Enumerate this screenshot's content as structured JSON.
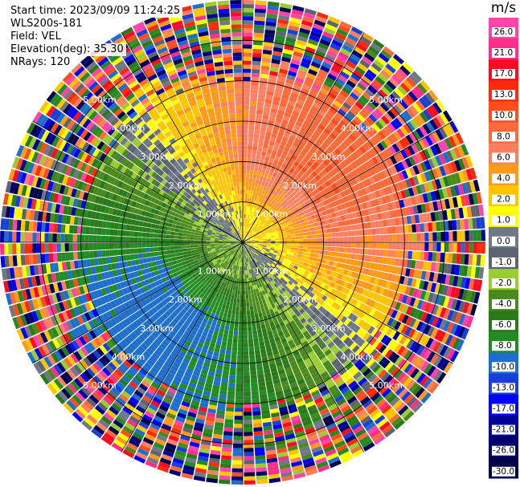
{
  "header": {
    "start_time": "Start time: 2023/09/09 11:24:25",
    "site": "WLS200s-181",
    "field": "Field: VEL",
    "elevation": "Elevation(deg): 35.30",
    "nrays": "NRays: 120"
  },
  "chart_data": {
    "type": "heatmap",
    "projection": "polar-ppi",
    "field": "VEL",
    "n_rays": 120,
    "max_range_km": 6.0,
    "range_ring_labels": [
      "1.00km",
      "2.00km",
      "3.00km",
      "4.00km",
      "5.00km"
    ],
    "range_ring_km": [
      1,
      2,
      3,
      4,
      5
    ],
    "ring_label_bearings_deg": [
      315,
      45,
      135,
      225
    ],
    "azimuth_spokes_deg": [
      0,
      30,
      60,
      90,
      120,
      150,
      180,
      210,
      240,
      270,
      300,
      330
    ],
    "velocity_pattern": {
      "description_of_field": "positive velocities toward north-east, negative toward south-west, noisy beyond ~4 km",
      "max_positive": 17.0,
      "max_negative": -10.0,
      "zero_bearing_deg": [
        315,
        135
      ],
      "peak_bearing_deg": 45,
      "clean_range_km": 4.0
    },
    "colorbar": {
      "unit": "m/s",
      "tick_labels": [
        "26.0",
        "21.0",
        "17.0",
        "13.0",
        "10.0",
        "8.0",
        "6.0",
        "4.0",
        "2.0",
        "1.0",
        "0.0",
        "-1.0",
        "-2.0",
        "-4.0",
        "-6.0",
        "-8.0",
        "-10.0",
        "-13.0",
        "-17.0",
        "-21.0",
        "-26.0",
        "-30.0"
      ],
      "bins": [
        {
          "upper": 30,
          "color": "#ff44aa"
        },
        {
          "upper": 26,
          "color": "#ff2f8a"
        },
        {
          "upper": 21,
          "color": "#ff0a20"
        },
        {
          "upper": 17,
          "color": "#ff2a0a"
        },
        {
          "upper": 13,
          "color": "#ff4d1e"
        },
        {
          "upper": 10,
          "color": "#ff6a3a"
        },
        {
          "upper": 8,
          "color": "#ff8060"
        },
        {
          "upper": 6,
          "color": "#ff9a1a"
        },
        {
          "upper": 4,
          "color": "#ffc400"
        },
        {
          "upper": 2,
          "color": "#ffff00"
        },
        {
          "upper": 1,
          "color": "#6e7886"
        },
        {
          "upper": 0,
          "color": "#5c6470"
        },
        {
          "upper": -1,
          "color": "#9acd32"
        },
        {
          "upper": -2,
          "color": "#4a8a1a"
        },
        {
          "upper": -4,
          "color": "#2a7a1a"
        },
        {
          "upper": -6,
          "color": "#228b22"
        },
        {
          "upper": -8,
          "color": "#1e6fcc"
        },
        {
          "upper": -10,
          "color": "#1a3fd8"
        },
        {
          "upper": -13,
          "color": "#0000ff"
        },
        {
          "upper": -17,
          "color": "#00009a"
        },
        {
          "upper": -21,
          "color": "#00006e"
        },
        {
          "upper": -26,
          "color": "#00004a"
        }
      ]
    }
  }
}
